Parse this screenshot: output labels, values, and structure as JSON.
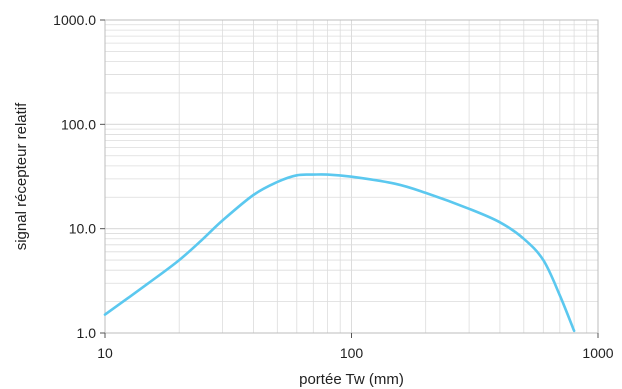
{
  "chart_data": {
    "type": "line",
    "title": "",
    "xlabel": "portée Tw (mm)",
    "ylabel": "signal récepteur relatif",
    "x_scale": "log",
    "y_scale": "log",
    "xlim": [
      10,
      1000
    ],
    "ylim": [
      1.0,
      1000.0
    ],
    "x_ticks": [
      "10",
      "100",
      "1000"
    ],
    "y_ticks": [
      "1.0",
      "10.0",
      "100.0",
      "1000.0"
    ],
    "grid": true,
    "legend": "none",
    "line_color": "#5bc8ef",
    "grid_color": "#dcdcdc",
    "series": [
      {
        "x": [
          10,
          15,
          20,
          25,
          30,
          40,
          50,
          60,
          70,
          80,
          100,
          150,
          200,
          300,
          400,
          500,
          600,
          700,
          800
        ],
        "y": [
          1.5,
          3.0,
          5.0,
          8.0,
          12.0,
          21.0,
          28.0,
          32.5,
          33.0,
          33.0,
          31.5,
          27.0,
          22.0,
          15.5,
          11.5,
          8.0,
          5.0,
          2.3,
          1.05
        ]
      }
    ]
  }
}
